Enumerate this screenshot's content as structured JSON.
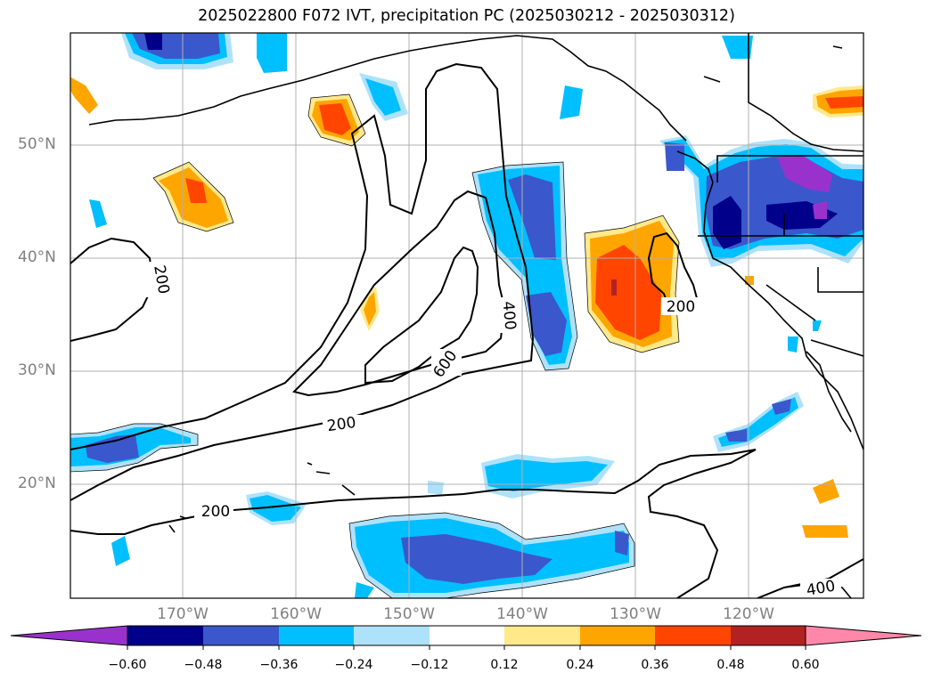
{
  "title": "2025022800 F072 IVT, precipitation PC (2025030212 - 2025030312)",
  "latitude_labels": [
    "50°N",
    "40°N",
    "30°N",
    "20°N"
  ],
  "longitude_labels": [
    "170°W",
    "160°W",
    "150°W",
    "140°W",
    "130°W",
    "120°W"
  ],
  "contour_labels": [
    "200",
    "200",
    "200",
    "200",
    "400",
    "600",
    "400"
  ],
  "colorbar": {
    "ticks": [
      "−0.60",
      "−0.48",
      "−0.36",
      "−0.24",
      "−0.12",
      "0.12",
      "0.24",
      "0.36",
      "0.48",
      "0.60"
    ],
    "colors": [
      "#9932cc",
      "#00008b",
      "#3b57cc",
      "#00bfff",
      "#aee2fa",
      "#ffffff",
      "#ffe98a",
      "#ffa500",
      "#ff4500",
      "#b22222",
      "#ff88aa"
    ]
  },
  "contour_levels": [
    "200",
    "400",
    "600"
  ],
  "colors": {
    "grid": "#b0b0b0",
    "coastline": "#000000",
    "contour": "#000000"
  }
}
